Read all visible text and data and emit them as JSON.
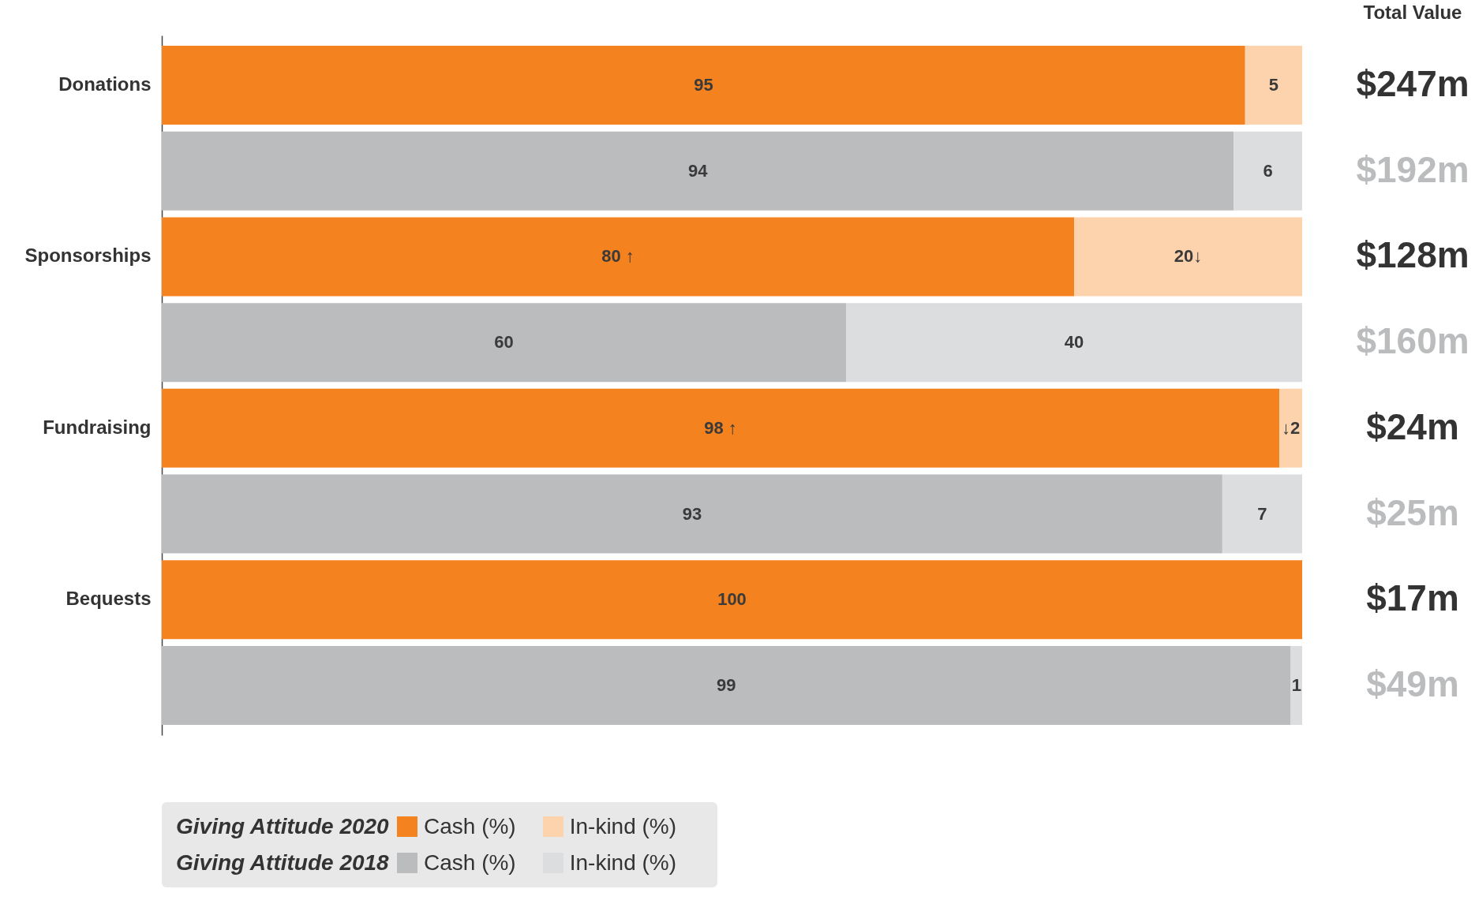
{
  "chart_data": {
    "type": "bar",
    "orientation": "horizontal",
    "stacked": true,
    "categories": [
      "Donations",
      null,
      "Sponsorships",
      null,
      "Fundraising",
      null,
      "Bequests",
      null
    ],
    "xlim": [
      0,
      100
    ],
    "tick_labels": "y",
    "legend": "bottom left",
    "series": [
      {
        "name": "Cash (%)",
        "color": "#f4821f",
        "values": [
          95,
          null,
          80,
          null,
          98,
          null,
          100,
          null
        ],
        "value_labels": [
          "95",
          null,
          "80 ↑",
          null,
          "98 ↑",
          null,
          "100",
          null
        ]
      },
      {
        "name": "In-kind (%)",
        "color": "#fdd3ae",
        "values": [
          5,
          null,
          20,
          null,
          2,
          null,
          0,
          null
        ],
        "value_labels": [
          "5",
          null,
          "20↓",
          null,
          "↓2",
          null,
          null,
          null
        ]
      },
      {
        "name": "Cash (%)",
        "color": "#bbbcbe",
        "values": [
          null,
          94,
          null,
          60,
          null,
          93,
          null,
          99
        ],
        "value_labels": [
          null,
          "94",
          null,
          "60",
          null,
          "93",
          null,
          "99"
        ]
      },
      {
        "name": "In-kind (%)",
        "color": "#dcdddf",
        "values": [
          null,
          6,
          null,
          40,
          null,
          7,
          null,
          1
        ],
        "value_labels": [
          null,
          "6",
          null,
          "40",
          null,
          "7",
          null,
          "1"
        ]
      }
    ],
    "annotations": [
      "Total Value",
      "Giving Attitude 2020",
      "Giving Attitude 2018",
      "$247m",
      "$192m",
      "$128m",
      "$160m",
      "$24m",
      "$25m",
      "$17m",
      "$49m"
    ]
  }
}
